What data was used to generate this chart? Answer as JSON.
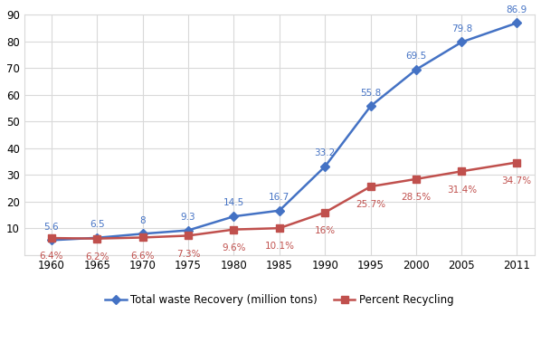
{
  "years": [
    1960,
    1965,
    1970,
    1975,
    1980,
    1985,
    1990,
    1995,
    2000,
    2005,
    2011
  ],
  "total_waste": [
    5.6,
    6.5,
    8.0,
    9.3,
    14.5,
    16.7,
    33.2,
    55.8,
    69.5,
    79.8,
    86.9
  ],
  "percent_recycling": [
    6.4,
    6.2,
    6.6,
    7.3,
    9.6,
    10.1,
    16.0,
    25.7,
    28.5,
    31.4,
    34.7
  ],
  "total_waste_labels": [
    "5.6",
    "6.5",
    "8",
    "9.3",
    "14.5",
    "16.7",
    "33.2",
    "55.8",
    "69.5",
    "79.8",
    "86.9"
  ],
  "percent_labels": [
    "6.4%",
    "6.2%",
    "6.6%",
    "7.3%",
    "9.6%",
    "10.1%",
    "16%",
    "25.7%",
    "28.5%",
    "31.4%",
    "34.7%"
  ],
  "line1_color": "#4472C4",
  "line2_color": "#C0504D",
  "marker1": "D",
  "marker2": "s",
  "legend1": "Total waste Recovery (million tons)",
  "legend2": "Percent Recycling",
  "ylim": [
    0,
    90
  ],
  "yticks": [
    0,
    10,
    20,
    30,
    40,
    50,
    60,
    70,
    80,
    90
  ],
  "background_color": "#ffffff",
  "grid_color": "#d9d9d9",
  "waste_label_offsets_y": [
    7,
    7,
    7,
    7,
    7,
    7,
    7,
    7,
    7,
    7,
    7
  ],
  "waste_label_offsets_x": [
    0,
    0,
    0,
    0,
    0,
    0,
    0,
    0,
    0,
    0,
    0
  ],
  "pct_label_offsets_y": [
    -11,
    -11,
    -11,
    -11,
    -11,
    -11,
    -11,
    -11,
    -11,
    -11,
    -11
  ],
  "pct_label_offsets_x": [
    0,
    0,
    0,
    0,
    0,
    0,
    0,
    0,
    0,
    0,
    0
  ]
}
